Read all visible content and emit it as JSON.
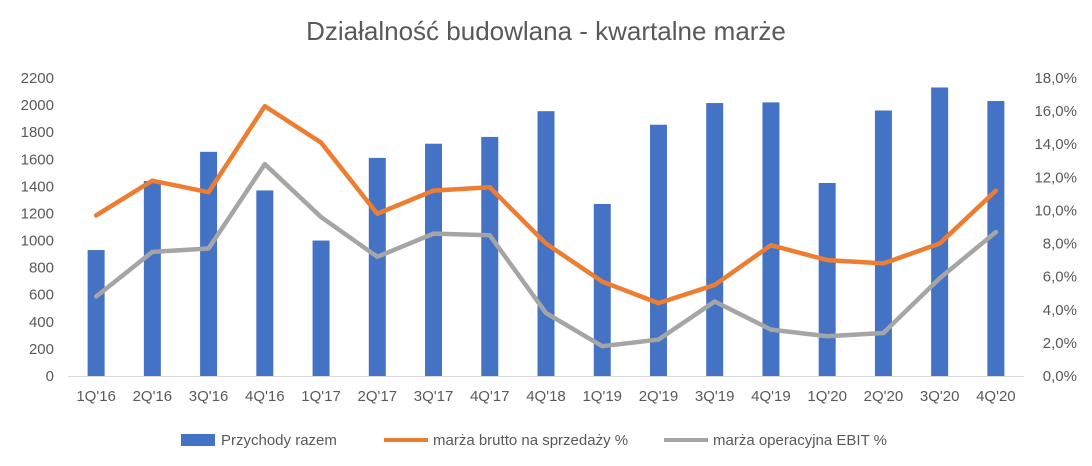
{
  "chart_data": {
    "type": "bar",
    "title": "Działalność budowlana - kwartalne marże",
    "categories": [
      "1Q'16",
      "2Q'16",
      "3Q'16",
      "4Q'16",
      "1Q'17",
      "2Q'17",
      "3Q'17",
      "4Q'17",
      "4Q'18",
      "1Q'19",
      "2Q'19",
      "3Q'19",
      "4Q'19",
      "1Q'20",
      "2Q'20",
      "3Q'20",
      "4Q'20"
    ],
    "bar_series": {
      "name": "Przychody razem",
      "axis": "left",
      "color": "#4472C4",
      "values": [
        930,
        1440,
        1655,
        1370,
        1000,
        1610,
        1715,
        1765,
        1955,
        1270,
        1855,
        2015,
        2020,
        1425,
        1960,
        2130,
        2030
      ]
    },
    "line_series": [
      {
        "name": "marża brutto na sprzedaży %",
        "axis": "right",
        "color": "#ED7D31",
        "values": [
          9.7,
          11.8,
          11.1,
          16.3,
          14.1,
          9.8,
          11.2,
          11.4,
          8.0,
          5.7,
          4.4,
          5.5,
          7.9,
          7.0,
          6.8,
          8.0,
          11.2
        ]
      },
      {
        "name": "marża operacyjna EBIT %",
        "axis": "right",
        "color": "#A5A5A5",
        "values": [
          4.8,
          7.5,
          7.7,
          12.8,
          9.6,
          7.2,
          8.6,
          8.5,
          3.8,
          1.8,
          2.2,
          4.5,
          2.8,
          2.4,
          2.6,
          5.9,
          8.7
        ]
      }
    ],
    "y_left": {
      "min": 0,
      "max": 2200,
      "step": 200,
      "tick_labels": [
        "0",
        "200",
        "400",
        "600",
        "800",
        "1000",
        "1200",
        "1400",
        "1600",
        "1800",
        "2000",
        "2200"
      ]
    },
    "y_right": {
      "min": 0,
      "max": 18,
      "step": 2,
      "tick_labels": [
        "0,0%",
        "2,0%",
        "4,0%",
        "6,0%",
        "8,0%",
        "10,0%",
        "12,0%",
        "14,0%",
        "16,0%",
        "18,0%"
      ]
    },
    "grid": false,
    "legend_position": "bottom",
    "axis_color": "#D9D9D9",
    "text_color": "#595959"
  }
}
